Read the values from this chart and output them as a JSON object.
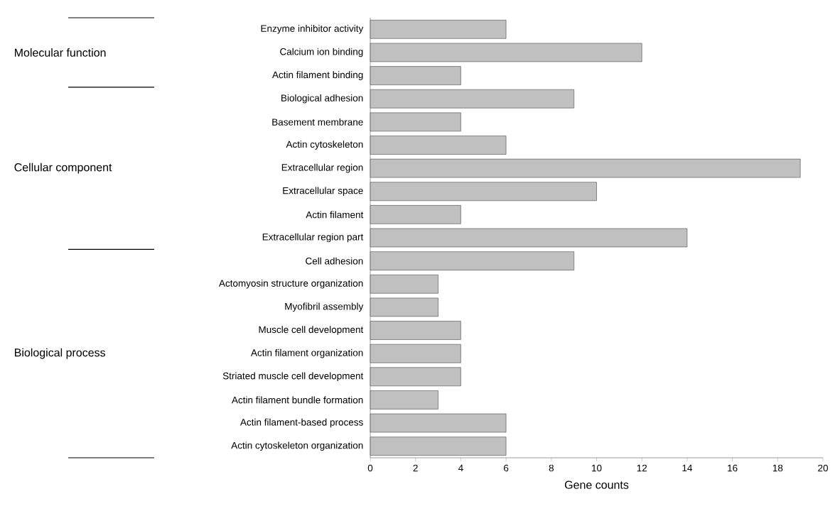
{
  "chart_data": {
    "type": "bar",
    "orientation": "horizontal",
    "xlabel": "Gene counts",
    "categories": [
      "Enzyme inhibitor activity",
      "Calcium ion binding",
      "Actin filament binding",
      "Biological adhesion",
      "Basement membrane",
      "Actin cytoskeleton",
      "Extracellular region",
      "Extracellular space",
      "Actin filament",
      "Extracellular region part",
      "Cell adhesion",
      "Actomyosin structure organization",
      "Myofibril assembly",
      "Muscle cell development",
      "Actin filament organization",
      "Striated muscle cell development",
      "Actin filament bundle formation",
      "Actin filament-based process",
      "Actin cytoskeleton organization"
    ],
    "values": [
      6,
      12,
      4,
      9,
      4,
      6,
      19,
      10,
      4,
      14,
      9,
      3,
      3,
      4,
      4,
      4,
      3,
      6,
      6
    ],
    "color": "#c0c0c0",
    "xlim": [
      0,
      20
    ],
    "xticks": [
      0,
      2,
      4,
      6,
      8,
      10,
      12,
      14,
      16,
      18,
      20
    ],
    "annotations": [
      "Molecular function",
      "Cellular component",
      "Biological process"
    ],
    "grid": false
  }
}
